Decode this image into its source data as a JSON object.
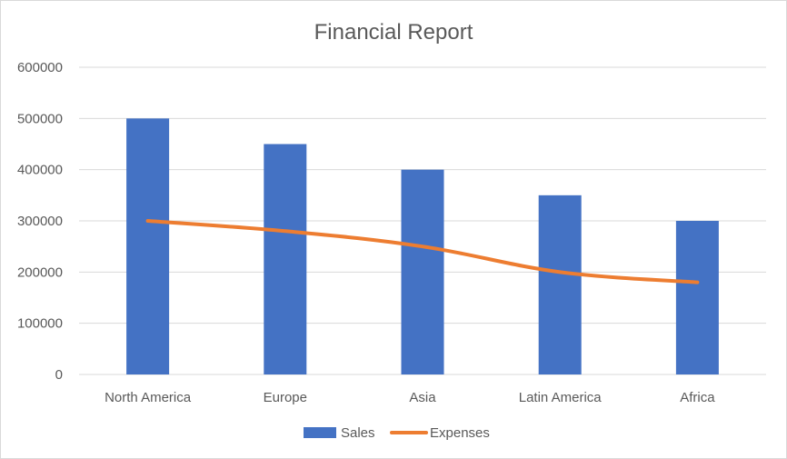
{
  "chart_data": {
    "type": "bar",
    "title": "Financial Report",
    "categories": [
      "North America",
      "Europe",
      "Asia",
      "Latin America",
      "Africa"
    ],
    "series": [
      {
        "name": "Sales",
        "type": "bar",
        "color": "#4472C4",
        "values": [
          500000,
          450000,
          400000,
          350000,
          300000
        ]
      },
      {
        "name": "Expenses",
        "type": "line",
        "color": "#ED7D31",
        "values": [
          300000,
          280000,
          250000,
          200000,
          180000
        ]
      }
    ],
    "xlabel": "",
    "ylabel": "",
    "ylim": [
      0,
      600000
    ],
    "yticks": [
      "0",
      "100000",
      "200000",
      "300000",
      "400000",
      "500000",
      "600000"
    ],
    "grid": true,
    "legend_position": "bottom"
  }
}
